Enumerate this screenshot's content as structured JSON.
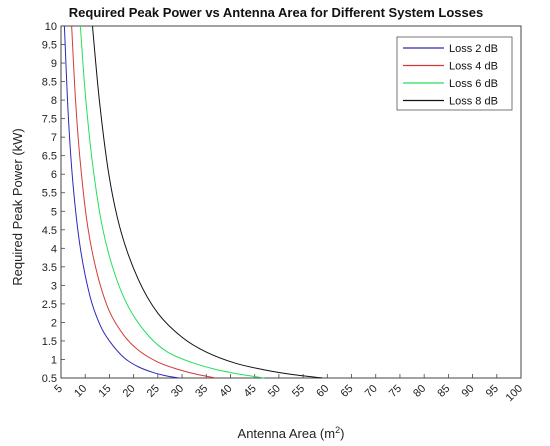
{
  "chart_data": {
    "type": "line",
    "title": "Required Peak Power vs Antenna Area for Different System Losses",
    "xlabel": "Antenna Area (m",
    "xlabel_superscript": "2",
    "xlabel_suffix": ")",
    "ylabel": "Required Peak Power (kW)",
    "xlim": [
      5,
      100
    ],
    "ylim": [
      0.5,
      10
    ],
    "xticks": [
      5,
      10,
      15,
      20,
      25,
      30,
      35,
      40,
      45,
      50,
      55,
      60,
      65,
      70,
      75,
      80,
      85,
      90,
      95,
      100
    ],
    "yticks": [
      0.5,
      1,
      1.5,
      2,
      2.5,
      3,
      3.5,
      4,
      4.5,
      5,
      5.5,
      6,
      6.5,
      7,
      7.5,
      8,
      8.5,
      9,
      9.5,
      10
    ],
    "grid": false,
    "legend_position": "top-right",
    "series": [
      {
        "name": "Loss 2 dB",
        "color": "#2a2ab8",
        "x": [
          5.7,
          6.5,
          7.5,
          9,
          11,
          13,
          15,
          18,
          21,
          24,
          27,
          29.5
        ],
        "y": [
          10,
          7.6,
          5.7,
          4.0,
          2.7,
          1.95,
          1.5,
          1.05,
          0.8,
          0.65,
          0.55,
          0.5
        ]
      },
      {
        "name": "Loss 4 dB",
        "color": "#d23a3a",
        "x": [
          7.2,
          8,
          9,
          10.5,
          12.5,
          15,
          18,
          21,
          25,
          29,
          33,
          37
        ],
        "y": [
          10,
          8.0,
          6.3,
          4.6,
          3.3,
          2.3,
          1.65,
          1.25,
          0.93,
          0.74,
          0.6,
          0.5
        ]
      },
      {
        "name": "Loss 6 dB",
        "color": "#22e05a",
        "x": [
          9,
          10,
          11.5,
          13.5,
          16,
          19,
          23,
          27,
          32,
          37,
          42,
          47
        ],
        "y": [
          10,
          8.2,
          6.3,
          4.6,
          3.35,
          2.4,
          1.65,
          1.2,
          0.92,
          0.73,
          0.6,
          0.5
        ]
      },
      {
        "name": "Loss 8 dB",
        "color": "#111111",
        "x": [
          11.5,
          13,
          15,
          17.5,
          21,
          25,
          30,
          35,
          41,
          47,
          53,
          59
        ],
        "y": [
          10,
          7.9,
          5.9,
          4.4,
          3.15,
          2.25,
          1.6,
          1.2,
          0.9,
          0.72,
          0.59,
          0.5
        ]
      }
    ]
  }
}
